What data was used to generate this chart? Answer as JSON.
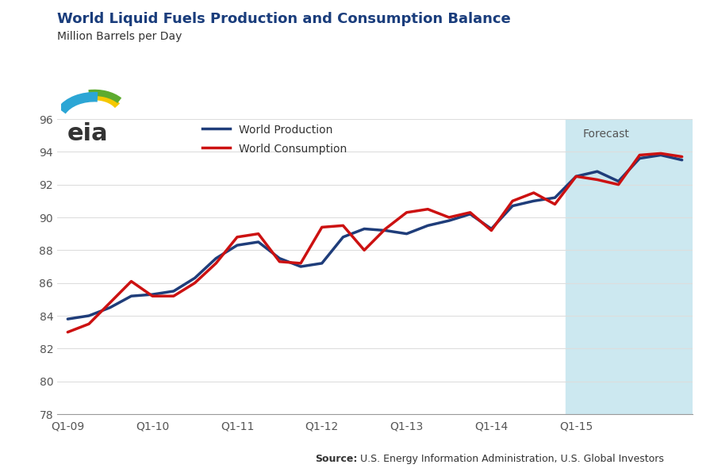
{
  "title": "World Liquid Fuels Production and Consumption Balance",
  "title_color": "#1a3d7c",
  "ylabel": "Million Barrels per Day",
  "ylim": [
    78,
    96
  ],
  "yticks": [
    78,
    80,
    82,
    84,
    86,
    88,
    90,
    92,
    94,
    96
  ],
  "source_bold": "Source:",
  "source_rest": " U.S. Energy Information Administration, U.S. Global Investors",
  "forecast_label": "Forecast",
  "forecast_start_index": 24,
  "n_points": 30,
  "xtick_labels": [
    "Q1-09",
    "Q1-10",
    "Q1-11",
    "Q1-12",
    "Q1-13",
    "Q1-14",
    "Q1-15"
  ],
  "xtick_positions": [
    0,
    4,
    8,
    12,
    16,
    20,
    24
  ],
  "production": [
    83.8,
    84.0,
    84.5,
    85.2,
    85.3,
    85.5,
    86.3,
    87.5,
    88.3,
    88.5,
    87.5,
    87.0,
    87.2,
    88.8,
    89.3,
    89.2,
    89.0,
    89.5,
    89.8,
    90.2,
    89.3,
    90.7,
    91.0,
    91.2,
    92.5,
    92.8,
    92.2,
    93.6,
    93.8,
    93.5
  ],
  "consumption": [
    83.0,
    83.5,
    84.8,
    86.1,
    85.2,
    85.2,
    86.0,
    87.2,
    88.8,
    89.0,
    87.3,
    87.2,
    89.4,
    89.5,
    88.0,
    89.3,
    90.3,
    90.5,
    90.0,
    90.3,
    89.2,
    91.0,
    91.5,
    90.8,
    92.5,
    92.3,
    92.0,
    93.8,
    93.9,
    93.7
  ],
  "production_color": "#1f3d7a",
  "consumption_color": "#cc1111",
  "forecast_bg_color": "#cce8f0",
  "linewidth": 2.5,
  "legend_prod": "World Production",
  "legend_cons": "World Consumption",
  "tick_label_color": "#555555",
  "grid_color": "#dddddd",
  "bottom_spine_color": "#999999"
}
